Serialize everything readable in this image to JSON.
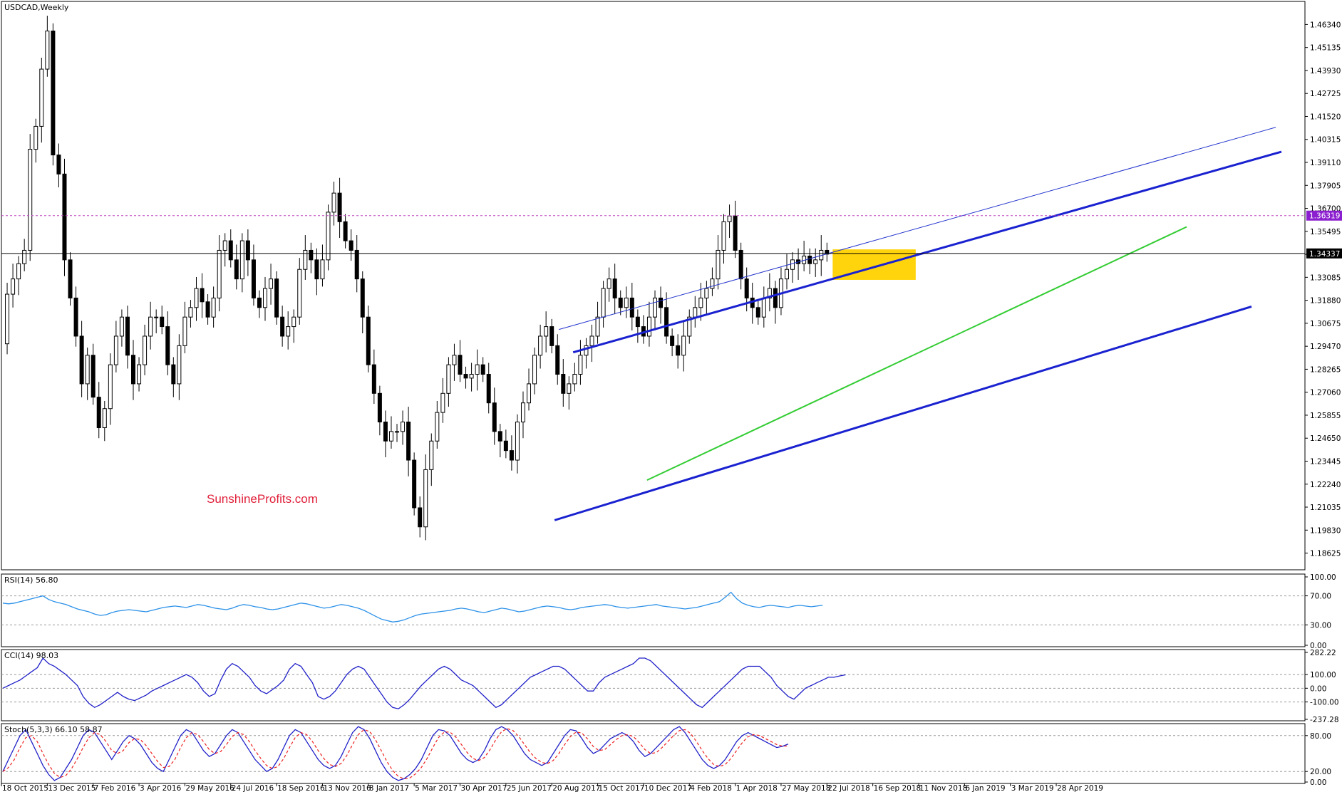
{
  "chart_data": {
    "type": "candlestick",
    "title": "USDCAD,Weekly",
    "watermark": "SunshineProfits.com",
    "price_axis": {
      "range": [
        1.1775,
        1.4755
      ],
      "ticks": [
        "1.46340",
        "1.45135",
        "1.43930",
        "1.42725",
        "1.41520",
        "1.40315",
        "1.39110",
        "1.37905",
        "1.36700",
        "1.35495",
        "1.34290",
        "1.33085",
        "1.31880",
        "1.30675",
        "1.29470",
        "1.28265",
        "1.27060",
        "1.25855",
        "1.24650",
        "1.23445",
        "1.22240",
        "1.21035",
        "1.19830",
        "1.18625"
      ]
    },
    "price_labels": [
      {
        "text": "1.36319",
        "value": 1.36319,
        "bg": "#8b1fcf",
        "line": "#c040c0",
        "style": "dotted"
      },
      {
        "text": "1.34337",
        "value": 1.34337,
        "bg": "#000000",
        "line": "#000000",
        "style": "solid"
      }
    ],
    "x_labels": [
      "18 Oct 2015",
      "13 Dec 2015",
      "7 Feb 2016",
      "3 Apr 2016",
      "29 May 2016",
      "24 Jul 2016",
      "18 Sep 2016",
      "13 Nov 2016",
      "8 Jan 2017",
      "5 Mar 2017",
      "30 Apr 2017",
      "25 Jun 2017",
      "20 Aug 2017",
      "15 Oct 2017",
      "10 Dec 2017",
      "4 Feb 2018",
      "1 Apr 2018",
      "27 May 2018",
      "22 Jul 2018",
      "16 Sep 2018",
      "11 Nov 2018",
      "6 Jan 2019",
      "3 Mar 2019",
      "28 Apr 2019"
    ],
    "close_path": [
      1.296,
      1.322,
      1.33,
      1.338,
      1.345,
      1.398,
      1.41,
      1.44,
      1.46,
      1.395,
      1.385,
      1.34,
      1.32,
      1.3,
      1.275,
      1.29,
      1.268,
      1.252,
      1.262,
      1.285,
      1.3,
      1.31,
      1.29,
      1.275,
      1.285,
      1.3,
      1.31,
      1.31,
      1.305,
      1.285,
      1.275,
      1.295,
      1.31,
      1.315,
      1.325,
      1.318,
      1.31,
      1.32,
      1.345,
      1.35,
      1.34,
      1.33,
      1.35,
      1.34,
      1.32,
      1.315,
      1.325,
      1.33,
      1.31,
      1.3,
      1.305,
      1.31,
      1.335,
      1.345,
      1.34,
      1.33,
      1.34,
      1.365,
      1.375,
      1.36,
      1.35,
      1.345,
      1.33,
      1.31,
      1.285,
      1.27,
      1.255,
      1.245,
      1.25,
      1.25,
      1.255,
      1.235,
      1.21,
      1.2,
      1.23,
      1.245,
      1.26,
      1.27,
      1.285,
      1.29,
      1.28,
      1.278,
      1.28,
      1.285,
      1.28,
      1.265,
      1.25,
      1.245,
      1.24,
      1.235,
      1.255,
      1.265,
      1.275,
      1.29,
      1.3,
      1.305,
      1.295,
      1.28,
      1.27,
      1.275,
      1.28,
      1.29,
      1.295,
      1.3,
      1.31,
      1.325,
      1.33,
      1.32,
      1.315,
      1.32,
      1.31,
      1.305,
      1.3,
      1.31,
      1.32,
      1.315,
      1.3,
      1.295,
      1.29,
      1.3,
      1.31,
      1.315,
      1.32,
      1.325,
      1.33,
      1.345,
      1.36,
      1.363,
      1.345,
      1.33,
      1.32,
      1.315,
      1.31,
      1.32,
      1.325,
      1.315,
      1.33,
      1.335,
      1.34,
      1.338,
      1.342,
      1.338,
      1.34,
      1.345,
      1.343
    ],
    "upper_channel_line": {
      "color": "#1a22d0",
      "from": [
        "20 Aug 2017",
        1.2915
      ],
      "to": [
        "past 28 Apr 2019",
        1.3967
      ]
    },
    "lower_channel_line": {
      "color": "#1a22d0",
      "from": [
        "20 Aug 2017",
        1.2035
      ],
      "to": [
        "past 28 Apr 2019",
        1.3155
      ]
    },
    "outer_channel_line": {
      "color": "#2233cc",
      "from": [
        "20 Aug 2017",
        1.3035
      ],
      "to": [
        "past 28 Apr 2019",
        1.4095
      ]
    },
    "support_line": {
      "color": "#33cc33",
      "from": [
        "10 Dec 2017",
        1.2245
      ],
      "to": [
        "past 28 Apr 2019",
        1.3573
      ]
    },
    "highlight_box": {
      "color": "#ffd200",
      "price_range": [
        1.3295,
        1.3455
      ]
    },
    "indicators": [
      {
        "name": "RSI(14) 56.80",
        "ticks": [
          "100.00",
          "70.00",
          "30.00",
          "0.00"
        ],
        "range": [
          0,
          100
        ],
        "levels": [
          70,
          30
        ],
        "color": "#2a90e8",
        "path": [
          60,
          59,
          60,
          62,
          64,
          66,
          68,
          70,
          65,
          62,
          60,
          58,
          55,
          52,
          50,
          48,
          45,
          43,
          44,
          47,
          49,
          50,
          51,
          50,
          49,
          48,
          50,
          52,
          54,
          55,
          56,
          55,
          54,
          56,
          58,
          57,
          55,
          53,
          52,
          51,
          53,
          56,
          58,
          57,
          55,
          54,
          52,
          51,
          52,
          54,
          56,
          58,
          60,
          59,
          57,
          55,
          53,
          54,
          56,
          58,
          57,
          55,
          53,
          50,
          46,
          42,
          38,
          36,
          34,
          35,
          37,
          40,
          43,
          45,
          46,
          47,
          48,
          49,
          50,
          52,
          53,
          52,
          50,
          48,
          47,
          49,
          51,
          53,
          52,
          50,
          48,
          49,
          51,
          53,
          55,
          56,
          55,
          54,
          52,
          51,
          52,
          54,
          55,
          56,
          57,
          58,
          57,
          55,
          54,
          53,
          54,
          55,
          56,
          57,
          58,
          56,
          55,
          54,
          53,
          52,
          53,
          54,
          56,
          58,
          60,
          62,
          68,
          75,
          66,
          60,
          57,
          55,
          54,
          56,
          57,
          56,
          55,
          54,
          56,
          57,
          56,
          55,
          56,
          57
        ]
      },
      {
        "name": "CCI(14) 98.03",
        "ticks": [
          "282.22",
          "100.00",
          "0.00",
          "-100.00",
          "-237.28"
        ],
        "range": [
          -237.28,
          282.22
        ],
        "levels": [
          100,
          0,
          -100
        ],
        "color": "#2020c8",
        "path": [
          0,
          20,
          40,
          60,
          90,
          120,
          150,
          220,
          180,
          160,
          130,
          100,
          60,
          20,
          -60,
          -110,
          -140,
          -120,
          -90,
          -60,
          -30,
          -60,
          -80,
          -90,
          -70,
          -50,
          -20,
          0,
          20,
          40,
          60,
          80,
          100,
          80,
          40,
          -20,
          -60,
          -40,
          60,
          140,
          180,
          160,
          120,
          80,
          20,
          -20,
          -40,
          -10,
          20,
          60,
          140,
          180,
          160,
          100,
          40,
          -60,
          -80,
          -60,
          -20,
          40,
          100,
          140,
          160,
          140,
          80,
          20,
          -40,
          -100,
          -140,
          -150,
          -120,
          -80,
          -30,
          20,
          60,
          100,
          140,
          160,
          140,
          100,
          60,
          40,
          20,
          -20,
          -60,
          -100,
          -140,
          -120,
          -80,
          -40,
          0,
          40,
          80,
          100,
          120,
          140,
          160,
          160,
          140,
          100,
          60,
          20,
          -20,
          -20,
          40,
          80,
          100,
          120,
          140,
          160,
          180,
          220,
          220,
          200,
          160,
          120,
          80,
          40,
          0,
          -40,
          -80,
          -120,
          -140,
          -100,
          -60,
          -20,
          20,
          60,
          100,
          140,
          160,
          160,
          160,
          120,
          80,
          20,
          -20,
          -60,
          -80,
          -40,
          0,
          20,
          40,
          60,
          80,
          80,
          90,
          98
        ]
      },
      {
        "name": "Stoch(5,3,3) 66.10 58.87",
        "ticks": [
          "80.00",
          "20.00",
          "0.00"
        ],
        "range": [
          0,
          100
        ],
        "levels": [
          80,
          20
        ],
        "color": "#2020c8",
        "signal_color": "#ee2020",
        "path": [
          20,
          40,
          60,
          80,
          90,
          70,
          50,
          30,
          15,
          5,
          10,
          25,
          40,
          60,
          80,
          90,
          85,
          70,
          55,
          40,
          55,
          70,
          80,
          75,
          65,
          50,
          35,
          25,
          20,
          40,
          60,
          80,
          90,
          85,
          70,
          55,
          45,
          50,
          65,
          80,
          90,
          85,
          70,
          55,
          40,
          30,
          20,
          25,
          40,
          60,
          80,
          90,
          85,
          70,
          55,
          40,
          30,
          25,
          30,
          45,
          65,
          85,
          95,
          90,
          75,
          55,
          35,
          20,
          10,
          5,
          8,
          15,
          25,
          40,
          60,
          80,
          90,
          88,
          80,
          65,
          50,
          40,
          35,
          40,
          55,
          75,
          90,
          95,
          90,
          80,
          65,
          50,
          40,
          35,
          30,
          35,
          50,
          65,
          80,
          90,
          88,
          75,
          60,
          50,
          55,
          65,
          75,
          80,
          85,
          80,
          70,
          55,
          45,
          50,
          60,
          70,
          80,
          90,
          95,
          85,
          70,
          55,
          40,
          30,
          25,
          30,
          40,
          55,
          70,
          80,
          85,
          80,
          75,
          70,
          65,
          60,
          62,
          66
        ]
      }
    ]
  }
}
